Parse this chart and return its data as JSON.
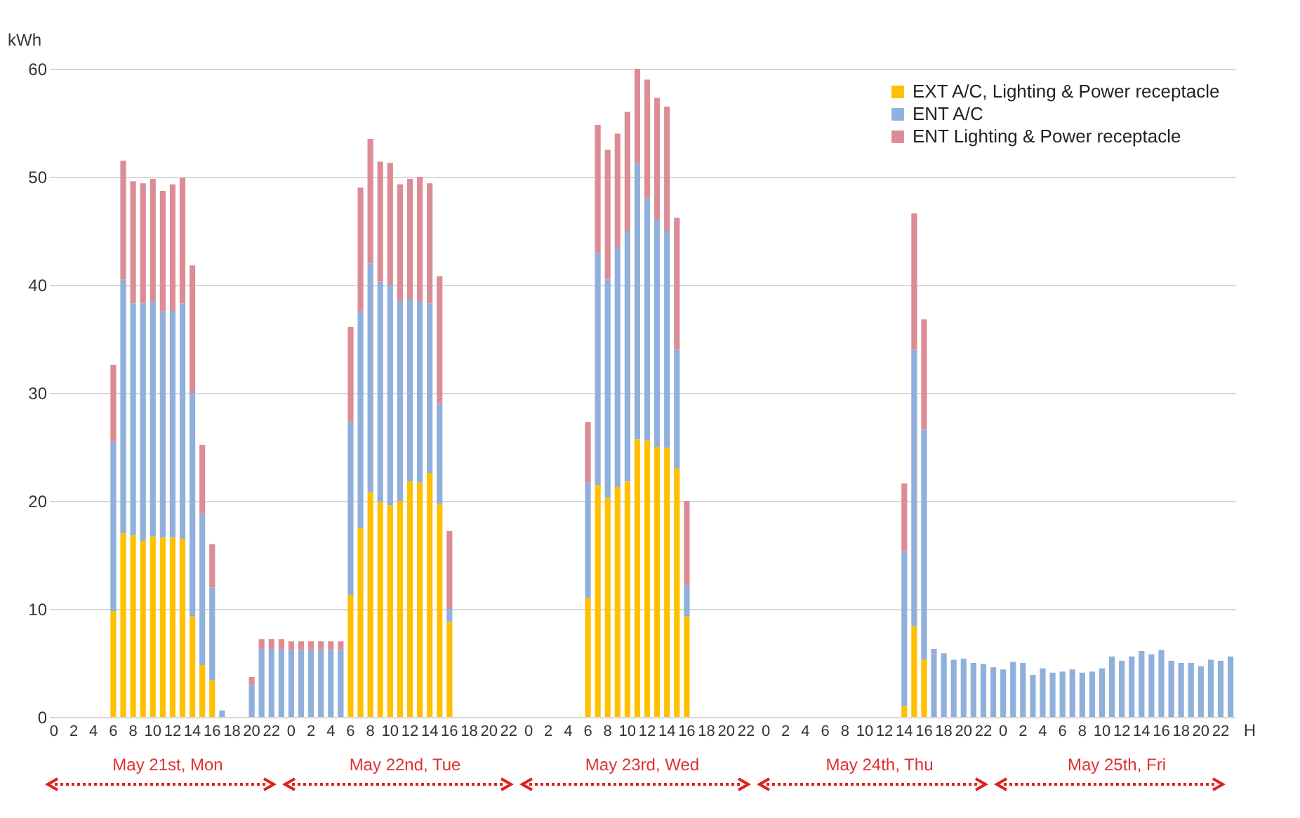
{
  "chart_data": {
    "type": "bar",
    "stacked": true,
    "xlabel": "H",
    "ylabel": "kWh",
    "categories": [
      "0",
      null,
      "2",
      null,
      "4",
      null,
      "6",
      null,
      "8",
      null,
      "10",
      null,
      "12",
      null,
      "14",
      null,
      "16",
      null,
      "18",
      null,
      "20",
      null,
      "22",
      null,
      "0",
      null,
      "2",
      null,
      "4",
      null,
      "6",
      null,
      "8",
      null,
      "10",
      null,
      "12",
      null,
      "14",
      null,
      "16",
      null,
      "18",
      null,
      "20",
      null,
      "22",
      null,
      "0",
      null,
      "2",
      null,
      "4",
      null,
      "6",
      null,
      "8",
      null,
      "10",
      null,
      "12",
      null,
      "14",
      null,
      "16",
      null,
      "18",
      null,
      "20",
      null,
      "22",
      null,
      "0",
      null,
      "2",
      null,
      "4",
      null,
      "6",
      null,
      "8",
      null,
      "10",
      null,
      "12",
      null,
      "14",
      null,
      "16",
      null,
      "18",
      null,
      "20",
      null,
      "22",
      null,
      "0",
      null,
      "2",
      null,
      "4",
      null,
      "6",
      null,
      "8",
      null,
      "10",
      null,
      "12",
      null,
      "14",
      null,
      "16",
      null,
      "18",
      null,
      "20",
      null,
      "22",
      null
    ],
    "series": [
      {
        "name": "EXT A/C, Lighting & Power receptacle",
        "color": "#ffc000",
        "values": [
          0,
          0,
          0,
          0,
          0,
          0,
          9.8,
          17,
          16.8,
          16.3,
          16.7,
          16.6,
          16.6,
          16.5,
          9.3,
          4.8,
          3.4,
          0,
          0,
          0,
          0,
          0,
          0,
          0,
          0,
          0,
          0,
          0,
          0,
          0,
          11.3,
          17.5,
          20.8,
          19.9,
          19.6,
          20,
          21.8,
          21.7,
          22.6,
          19.7,
          8.8,
          0,
          0,
          0,
          0,
          0,
          0,
          0,
          0,
          0,
          0,
          0,
          0,
          0,
          11,
          21.5,
          20.3,
          21.3,
          21.8,
          25.7,
          25.6,
          25,
          24.9,
          23,
          9.3,
          0,
          0,
          0,
          0,
          0,
          0,
          0,
          0,
          0,
          0,
          0,
          0,
          0,
          0,
          0,
          0,
          0,
          0,
          0,
          0,
          0,
          1,
          8.4,
          5.3,
          0,
          0,
          0,
          0,
          0,
          0,
          0,
          0,
          0,
          0,
          0,
          0,
          0,
          0,
          0,
          0,
          0,
          0,
          0,
          0,
          0,
          0,
          0,
          0,
          0,
          0,
          0,
          0,
          0,
          0,
          0
        ]
      },
      {
        "name": "ENT A/C",
        "color": "#8fb0dc",
        "values": [
          0,
          0,
          0,
          0,
          0,
          0,
          15.7,
          23.5,
          21.5,
          22,
          21.8,
          20.9,
          21,
          21.8,
          20.7,
          14,
          8.6,
          0.6,
          0,
          0,
          3,
          6.3,
          6.3,
          6.3,
          6.2,
          6.2,
          6.2,
          6.2,
          6.2,
          6.2,
          16,
          20,
          21.2,
          20.4,
          20.4,
          18.5,
          16.9,
          16.8,
          15.7,
          9.3,
          1.2,
          0,
          0,
          0,
          0,
          0,
          0,
          0,
          0,
          0,
          0,
          0,
          0,
          0,
          10.7,
          21.5,
          20.2,
          22.2,
          23.2,
          25.5,
          22.4,
          21,
          20.1,
          11,
          2.9,
          0,
          0,
          0,
          0,
          0,
          0,
          0,
          0,
          0,
          0,
          0,
          0,
          0,
          0,
          0,
          0,
          0,
          0,
          0,
          0,
          0,
          14.3,
          25.6,
          21.3,
          6.3,
          5.9,
          5.3,
          5.4,
          5,
          4.9,
          4.6,
          4.4,
          5.1,
          5,
          3.9,
          4.5,
          4.1,
          4.2,
          4.4,
          4.1,
          4.2,
          4.5,
          5.6,
          5.2,
          5.6,
          6.1,
          5.8,
          6.2,
          5.2,
          5,
          5,
          4.7,
          5.3,
          5.2,
          5.6
        ]
      },
      {
        "name": "ENT Lighting & Power receptacle",
        "color": "#dc8c94",
        "values": [
          0,
          0,
          0,
          0,
          0,
          0,
          7.1,
          11,
          11.3,
          11.1,
          11.3,
          11.2,
          11.7,
          11.6,
          11.8,
          6.4,
          4,
          0,
          0,
          0,
          0.7,
          0.9,
          0.9,
          0.9,
          0.8,
          0.8,
          0.8,
          0.8,
          0.8,
          0.8,
          8.8,
          11.5,
          11.5,
          11.1,
          11.3,
          10.8,
          11.1,
          11.5,
          11.1,
          11.8,
          7.2,
          0,
          0,
          0,
          0,
          0,
          0,
          0,
          0,
          0,
          0,
          0,
          0,
          0,
          5.6,
          11.8,
          12,
          10.5,
          11,
          8.8,
          11,
          11.3,
          11.5,
          12.2,
          7.8,
          0,
          0,
          0,
          0,
          0,
          0,
          0,
          0,
          0,
          0,
          0,
          0,
          0,
          0,
          0,
          0,
          0,
          0,
          0,
          0,
          0,
          6.3,
          12.6,
          10.2,
          0,
          0,
          0,
          0,
          0,
          0,
          0,
          0,
          0,
          0,
          0,
          0,
          0,
          0,
          0,
          0,
          0,
          0,
          0,
          0,
          0,
          0,
          0,
          0,
          0,
          0,
          0,
          0,
          0,
          0,
          0
        ]
      }
    ],
    "ylim": [
      0,
      60
    ],
    "yticks": [
      0,
      10,
      20,
      30,
      40,
      50,
      60
    ],
    "grid": "y",
    "legend": "top right",
    "annotations": [
      "May 21st, Mon",
      "May 22nd, Tue",
      "May 23rd, Wed",
      "May 24th, Thu",
      "May 25th, Fri"
    ]
  }
}
